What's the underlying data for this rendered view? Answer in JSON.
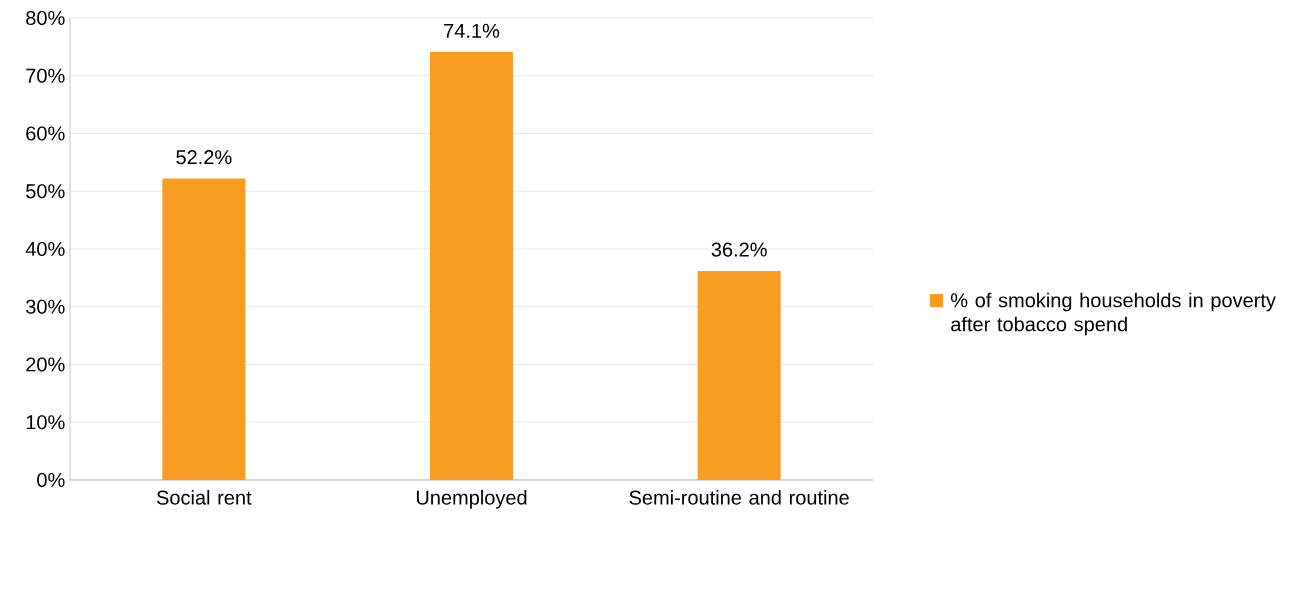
{
  "chart_data": {
    "type": "bar",
    "categories": [
      "Social rent",
      "Unemployed",
      "Semi-routine and routine"
    ],
    "series": [
      {
        "name": "% of smoking households in poverty after tobacco spend",
        "color": "#f89c22",
        "values": [
          52.2,
          74.1,
          36.2
        ],
        "value_labels": [
          "52.2%",
          "74.1%",
          "36.2%"
        ]
      }
    ],
    "ylim": [
      0,
      80
    ],
    "yticks": [
      {
        "value": 0,
        "label": "0%"
      },
      {
        "value": 10,
        "label": "10%"
      },
      {
        "value": 20,
        "label": "20%"
      },
      {
        "value": 30,
        "label": "30%"
      },
      {
        "value": 40,
        "label": "40%"
      },
      {
        "value": 50,
        "label": "50%"
      },
      {
        "value": 60,
        "label": "60%"
      },
      {
        "value": 70,
        "label": "70%"
      },
      {
        "value": 80,
        "label": "80%"
      }
    ],
    "grid": "y",
    "legend": "right"
  }
}
